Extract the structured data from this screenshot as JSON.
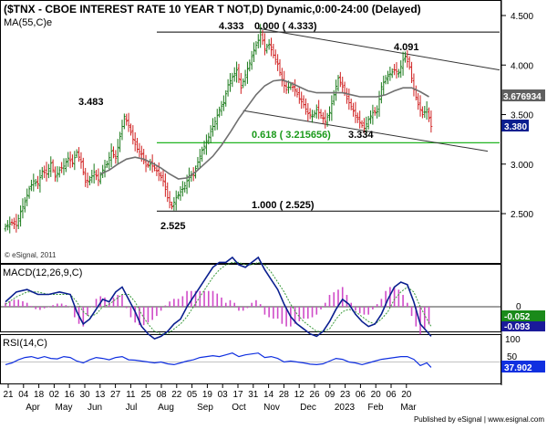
{
  "chart_data": [
    {
      "type": "candlestick",
      "title": "($TNX - CBOE INTEREST RATE 10 YEAR T NOT,D) Dynamic,0:00-24:00 (Delayed)",
      "ma_label": "MA(55,C)e",
      "ylim": [
        2.0,
        4.6
      ],
      "y_ticks": [
        2.5,
        3.0,
        3.5,
        4.0,
        4.5
      ],
      "y_tick_labels": [
        "2.500",
        "3.000",
        "3.500",
        "4.000",
        "4.500"
      ],
      "last_price": "3.380",
      "ma_value": "3.676934",
      "annotations": {
        "high_2022": "4.333",
        "fib_0": "0.000 ( 4.333)",
        "fib_618": "0.618 ( 3.215656)",
        "fib_1": "1.000 ( 2.525)",
        "peak_jun": "3.483",
        "low_aug": "2.525",
        "peak_feb": "4.091",
        "low_jan": "3.334"
      },
      "fib_levels": [
        4.333,
        3.215656,
        2.525
      ],
      "close_path": [
        [
          0,
          2.37
        ],
        [
          3,
          2.41
        ],
        [
          5,
          2.38
        ],
        [
          7,
          2.52
        ],
        [
          9,
          2.62
        ],
        [
          11,
          2.75
        ],
        [
          13,
          2.83
        ],
        [
          15,
          2.8
        ],
        [
          17,
          2.93
        ],
        [
          19,
          2.9
        ],
        [
          21,
          3.01
        ],
        [
          23,
          2.87
        ],
        [
          25,
          2.94
        ],
        [
          27,
          2.98
        ],
        [
          29,
          3.06
        ],
        [
          31,
          3.01
        ],
        [
          33,
          3.12
        ],
        [
          35,
          3.02
        ],
        [
          37,
          2.82
        ],
        [
          39,
          2.84
        ],
        [
          41,
          2.92
        ],
        [
          43,
          2.84
        ],
        [
          45,
          2.94
        ],
        [
          47,
          3.0
        ],
        [
          49,
          3.13
        ],
        [
          51,
          3.06
        ],
        [
          53,
          3.28
        ],
        [
          55,
          3.48
        ],
        [
          57,
          3.39
        ],
        [
          59,
          3.25
        ],
        [
          61,
          3.15
        ],
        [
          63,
          3.1
        ],
        [
          65,
          2.98
        ],
        [
          67,
          3.0
        ],
        [
          69,
          2.96
        ],
        [
          71,
          2.9
        ],
        [
          73,
          2.83
        ],
        [
          75,
          2.66
        ],
        [
          77,
          2.57
        ],
        [
          79,
          2.66
        ],
        [
          81,
          2.72
        ],
        [
          83,
          2.78
        ],
        [
          85,
          2.88
        ],
        [
          87,
          2.89
        ],
        [
          89,
          3.02
        ],
        [
          91,
          3.14
        ],
        [
          93,
          3.22
        ],
        [
          95,
          3.33
        ],
        [
          97,
          3.43
        ],
        [
          99,
          3.55
        ],
        [
          101,
          3.62
        ],
        [
          103,
          3.8
        ],
        [
          105,
          3.88
        ],
        [
          107,
          3.95
        ],
        [
          109,
          3.77
        ],
        [
          111,
          3.9
        ],
        [
          113,
          4.02
        ],
        [
          115,
          4.15
        ],
        [
          117,
          4.25
        ],
        [
          118,
          4.33
        ],
        [
          120,
          4.16
        ],
        [
          122,
          4.21
        ],
        [
          124,
          4.1
        ],
        [
          126,
          4.01
        ],
        [
          128,
          3.84
        ],
        [
          130,
          3.75
        ],
        [
          132,
          3.8
        ],
        [
          134,
          3.75
        ],
        [
          136,
          3.66
        ],
        [
          138,
          3.6
        ],
        [
          140,
          3.51
        ],
        [
          142,
          3.48
        ],
        [
          144,
          3.55
        ],
        [
          146,
          3.49
        ],
        [
          148,
          3.43
        ],
        [
          150,
          3.52
        ],
        [
          152,
          3.7
        ],
        [
          154,
          3.87
        ],
        [
          156,
          3.78
        ],
        [
          158,
          3.66
        ],
        [
          160,
          3.58
        ],
        [
          162,
          3.49
        ],
        [
          164,
          3.42
        ],
        [
          166,
          3.36
        ],
        [
          168,
          3.45
        ],
        [
          170,
          3.52
        ],
        [
          172,
          3.53
        ],
        [
          174,
          3.78
        ],
        [
          176,
          3.87
        ],
        [
          178,
          3.91
        ],
        [
          180,
          3.95
        ],
        [
          182,
          3.92
        ],
        [
          184,
          4.05
        ],
        [
          185,
          4.09
        ],
        [
          187,
          3.98
        ],
        [
          189,
          3.75
        ],
        [
          191,
          3.6
        ],
        [
          193,
          3.5
        ],
        [
          195,
          3.55
        ],
        [
          197,
          3.38
        ]
      ],
      "ma_path": [
        [
          44,
          2.9
        ],
        [
          48,
          2.94
        ],
        [
          52,
          3.0
        ],
        [
          56,
          3.05
        ],
        [
          60,
          3.07
        ],
        [
          64,
          3.05
        ],
        [
          68,
          3.01
        ],
        [
          72,
          2.96
        ],
        [
          76,
          2.9
        ],
        [
          80,
          2.85
        ],
        [
          84,
          2.86
        ],
        [
          88,
          2.92
        ],
        [
          92,
          3.0
        ],
        [
          96,
          3.08
        ],
        [
          100,
          3.19
        ],
        [
          104,
          3.32
        ],
        [
          108,
          3.46
        ],
        [
          112,
          3.58
        ],
        [
          116,
          3.7
        ],
        [
          120,
          3.79
        ],
        [
          124,
          3.84
        ],
        [
          128,
          3.85
        ],
        [
          132,
          3.82
        ],
        [
          136,
          3.78
        ],
        [
          140,
          3.74
        ],
        [
          144,
          3.72
        ],
        [
          148,
          3.72
        ],
        [
          152,
          3.72
        ],
        [
          156,
          3.72
        ],
        [
          160,
          3.7
        ],
        [
          164,
          3.68
        ],
        [
          168,
          3.68
        ],
        [
          172,
          3.68
        ],
        [
          176,
          3.7
        ],
        [
          180,
          3.74
        ],
        [
          184,
          3.77
        ],
        [
          188,
          3.77
        ],
        [
          192,
          3.73
        ],
        [
          196,
          3.68
        ]
      ]
    },
    {
      "type": "line",
      "title": "MACD(12,26,9,C)",
      "ylim": [
        -0.16,
        0.22
      ],
      "y_tick_labels": [
        "0"
      ],
      "value_labels": [
        "-0.052",
        "-0.093"
      ],
      "macd": [
        [
          0,
          0.02
        ],
        [
          5,
          0.06
        ],
        [
          10,
          0.07
        ],
        [
          15,
          0.05
        ],
        [
          20,
          0.05
        ],
        [
          25,
          0.06
        ],
        [
          30,
          0.05
        ],
        [
          33,
          -0.02
        ],
        [
          36,
          -0.07
        ],
        [
          39,
          -0.05
        ],
        [
          42,
          -0.01
        ],
        [
          45,
          0.03
        ],
        [
          48,
          0.02
        ],
        [
          51,
          0.06
        ],
        [
          54,
          0.08
        ],
        [
          57,
          0.03
        ],
        [
          60,
          -0.02
        ],
        [
          63,
          -0.08
        ],
        [
          66,
          -0.11
        ],
        [
          69,
          -0.13
        ],
        [
          72,
          -0.12
        ],
        [
          75,
          -0.1
        ],
        [
          78,
          -0.07
        ],
        [
          81,
          -0.05
        ],
        [
          84,
          0.0
        ],
        [
          87,
          0.04
        ],
        [
          90,
          0.08
        ],
        [
          93,
          0.12
        ],
        [
          96,
          0.16
        ],
        [
          99,
          0.18
        ],
        [
          102,
          0.18
        ],
        [
          105,
          0.2
        ],
        [
          108,
          0.17
        ],
        [
          111,
          0.16
        ],
        [
          114,
          0.18
        ],
        [
          117,
          0.2
        ],
        [
          120,
          0.15
        ],
        [
          123,
          0.11
        ],
        [
          126,
          0.07
        ],
        [
          129,
          0.01
        ],
        [
          132,
          -0.04
        ],
        [
          135,
          -0.07
        ],
        [
          138,
          -0.09
        ],
        [
          141,
          -0.11
        ],
        [
          144,
          -0.12
        ],
        [
          147,
          -0.1
        ],
        [
          150,
          -0.06
        ],
        [
          153,
          -0.01
        ],
        [
          156,
          0.03
        ],
        [
          159,
          0.01
        ],
        [
          162,
          -0.03
        ],
        [
          165,
          -0.06
        ],
        [
          168,
          -0.08
        ],
        [
          171,
          -0.07
        ],
        [
          174,
          -0.03
        ],
        [
          177,
          0.03
        ],
        [
          180,
          0.08
        ],
        [
          183,
          0.1
        ],
        [
          186,
          0.09
        ],
        [
          189,
          0.02
        ],
        [
          192,
          -0.07
        ],
        [
          195,
          -0.1
        ],
        [
          197,
          -0.12
        ]
      ],
      "signal": [
        [
          0,
          0.01
        ],
        [
          5,
          0.04
        ],
        [
          10,
          0.06
        ],
        [
          15,
          0.06
        ],
        [
          20,
          0.05
        ],
        [
          25,
          0.05
        ],
        [
          30,
          0.05
        ],
        [
          33,
          0.02
        ],
        [
          36,
          -0.02
        ],
        [
          39,
          -0.04
        ],
        [
          42,
          -0.03
        ],
        [
          45,
          0.0
        ],
        [
          48,
          0.01
        ],
        [
          51,
          0.03
        ],
        [
          54,
          0.05
        ],
        [
          57,
          0.05
        ],
        [
          60,
          0.02
        ],
        [
          63,
          -0.03
        ],
        [
          66,
          -0.07
        ],
        [
          69,
          -0.1
        ],
        [
          72,
          -0.11
        ],
        [
          75,
          -0.11
        ],
        [
          78,
          -0.09
        ],
        [
          81,
          -0.07
        ],
        [
          84,
          -0.04
        ],
        [
          87,
          0.0
        ],
        [
          90,
          0.04
        ],
        [
          93,
          0.08
        ],
        [
          96,
          0.12
        ],
        [
          99,
          0.15
        ],
        [
          102,
          0.17
        ],
        [
          105,
          0.18
        ],
        [
          108,
          0.18
        ],
        [
          111,
          0.17
        ],
        [
          114,
          0.17
        ],
        [
          117,
          0.18
        ],
        [
          120,
          0.17
        ],
        [
          123,
          0.14
        ],
        [
          126,
          0.1
        ],
        [
          129,
          0.06
        ],
        [
          132,
          0.01
        ],
        [
          135,
          -0.03
        ],
        [
          138,
          -0.06
        ],
        [
          141,
          -0.08
        ],
        [
          144,
          -0.1
        ],
        [
          147,
          -0.1
        ],
        [
          150,
          -0.09
        ],
        [
          153,
          -0.05
        ],
        [
          156,
          -0.02
        ],
        [
          159,
          -0.01
        ],
        [
          162,
          -0.02
        ],
        [
          165,
          -0.04
        ],
        [
          168,
          -0.06
        ],
        [
          171,
          -0.07
        ],
        [
          174,
          -0.05
        ],
        [
          177,
          -0.02
        ],
        [
          180,
          0.03
        ],
        [
          183,
          0.06
        ],
        [
          186,
          0.08
        ],
        [
          189,
          0.06
        ],
        [
          192,
          0.0
        ],
        [
          195,
          -0.05
        ],
        [
          197,
          -0.08
        ]
      ]
    },
    {
      "type": "line",
      "title": "RSI(14,C)",
      "ylim": [
        0,
        100
      ],
      "y_tick_labels": [
        "100",
        "50"
      ],
      "value_label": "37.902",
      "rsi": [
        [
          0,
          44
        ],
        [
          3,
          48
        ],
        [
          6,
          55
        ],
        [
          9,
          60
        ],
        [
          12,
          62
        ],
        [
          15,
          58
        ],
        [
          18,
          62
        ],
        [
          21,
          58
        ],
        [
          24,
          57
        ],
        [
          27,
          62
        ],
        [
          30,
          60
        ],
        [
          33,
          52
        ],
        [
          36,
          48
        ],
        [
          39,
          55
        ],
        [
          42,
          60
        ],
        [
          45,
          58
        ],
        [
          48,
          55
        ],
        [
          51,
          60
        ],
        [
          54,
          62
        ],
        [
          57,
          55
        ],
        [
          60,
          54
        ],
        [
          63,
          52
        ],
        [
          66,
          50
        ],
        [
          69,
          48
        ],
        [
          72,
          50
        ],
        [
          75,
          46
        ],
        [
          78,
          44
        ],
        [
          81,
          48
        ],
        [
          84,
          52
        ],
        [
          87,
          55
        ],
        [
          90,
          60
        ],
        [
          93,
          62
        ],
        [
          96,
          64
        ],
        [
          99,
          62
        ],
        [
          102,
          66
        ],
        [
          105,
          70
        ],
        [
          108,
          62
        ],
        [
          111,
          66
        ],
        [
          114,
          68
        ],
        [
          117,
          70
        ],
        [
          120,
          60
        ],
        [
          123,
          62
        ],
        [
          126,
          58
        ],
        [
          129,
          50
        ],
        [
          132,
          52
        ],
        [
          135,
          50
        ],
        [
          138,
          48
        ],
        [
          141,
          45
        ],
        [
          144,
          44
        ],
        [
          147,
          46
        ],
        [
          150,
          52
        ],
        [
          153,
          58
        ],
        [
          156,
          56
        ],
        [
          159,
          50
        ],
        [
          162,
          48
        ],
        [
          165,
          44
        ],
        [
          168,
          48
        ],
        [
          171,
          52
        ],
        [
          174,
          56
        ],
        [
          177,
          58
        ],
        [
          180,
          60
        ],
        [
          183,
          62
        ],
        [
          186,
          62
        ],
        [
          189,
          56
        ],
        [
          192,
          42
        ],
        [
          195,
          48
        ],
        [
          197,
          38
        ]
      ]
    }
  ],
  "x_tick_labels": [
    "21",
    "04",
    "18",
    "02",
    "16",
    "30",
    "13",
    "27",
    "11",
    "25",
    "08",
    "22",
    "05",
    "19",
    "03",
    "17",
    "31",
    "14",
    "28",
    "12",
    "26",
    "09",
    "23",
    "06",
    "20",
    "06",
    "20"
  ],
  "month_labels": [
    "Apr",
    "May",
    "Jun",
    "Jul",
    "Aug",
    "Sep",
    "Oct",
    "Nov",
    "Dec",
    "2023",
    "Feb",
    "Mar"
  ],
  "watermark": "© eSignal, 2011",
  "footer": "Published by eSignal | www.esignal.com",
  "colors": {
    "up_bar": "#1a7a1a",
    "down_bar": "#d02020",
    "ma": "#707070",
    "fib_618": "#22b422",
    "macd_line": "#0a1f8f",
    "signal_line": "#3a9a3a",
    "histogram": "#d04cc8",
    "rsi": "#1030e0",
    "last_price_box": "#0a1f8f",
    "ma_box": "#606060",
    "macd_box": "#1a8a1a",
    "macd_box2": "#1a1a9a",
    "rsi_box": "#1030e0"
  }
}
